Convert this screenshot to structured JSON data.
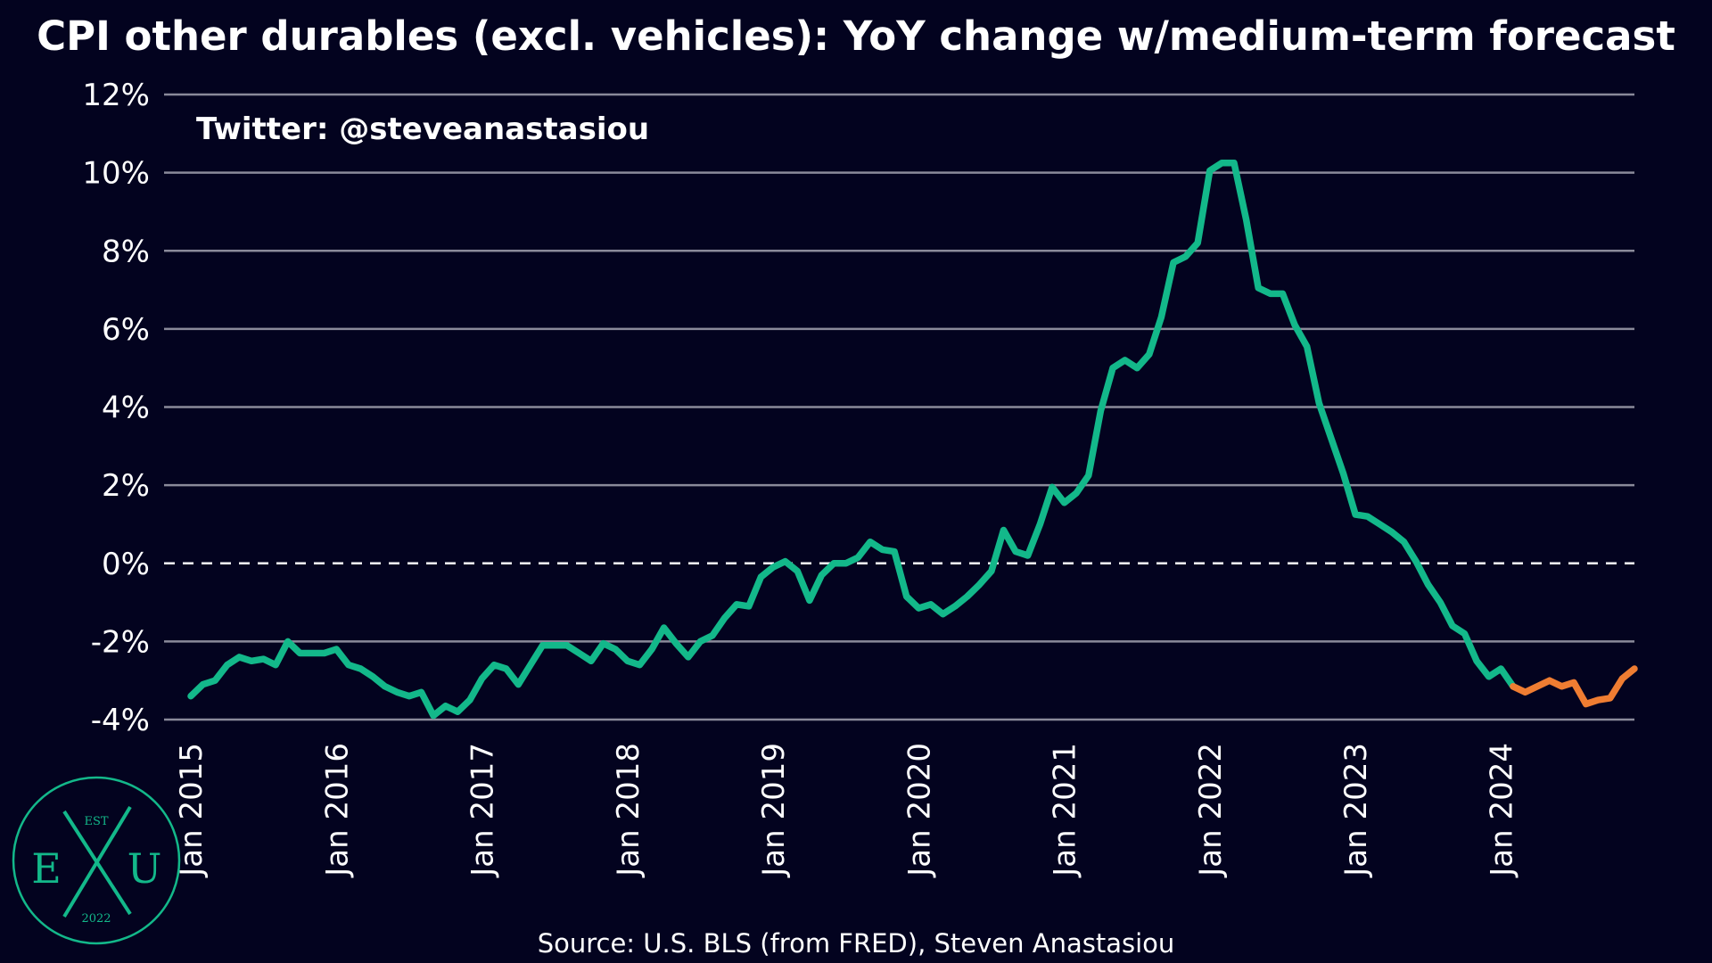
{
  "chart_data": {
    "type": "line",
    "title": "CPI other durables (excl. vehicles): YoY change w/medium-term forecast",
    "annotation": "Twitter: @steveanastasiou",
    "source": "Source: U.S. BLS (from FRED), Steven Anastasiou",
    "logo": {
      "top": "EST",
      "left": "E",
      "right": "U",
      "bottom": "2022"
    },
    "categories": [
      "Jan 2015",
      null,
      null,
      null,
      null,
      null,
      null,
      null,
      null,
      null,
      null,
      null,
      "Jan 2016",
      null,
      null,
      null,
      null,
      null,
      null,
      null,
      null,
      null,
      null,
      null,
      "Jan 2017",
      null,
      null,
      null,
      null,
      null,
      null,
      null,
      null,
      null,
      null,
      null,
      "Jan 2018",
      null,
      null,
      null,
      null,
      null,
      null,
      null,
      null,
      null,
      null,
      null,
      "Jan 2019",
      null,
      null,
      null,
      null,
      null,
      null,
      null,
      null,
      null,
      null,
      null,
      "Jan 2020",
      null,
      null,
      null,
      null,
      null,
      null,
      null,
      null,
      null,
      null,
      null,
      "Jan 2021",
      null,
      null,
      null,
      null,
      null,
      null,
      null,
      null,
      null,
      null,
      null,
      "Jan 2022",
      null,
      null,
      null,
      null,
      null,
      null,
      null,
      null,
      null,
      null,
      null,
      "Jan 2023",
      null,
      null,
      null,
      null,
      null,
      null,
      null,
      null,
      null,
      null,
      null,
      "Jan 2024",
      null,
      null,
      null,
      null,
      null,
      null,
      null,
      null,
      null,
      null,
      null
    ],
    "series": [
      {
        "color": "#13b88a",
        "values": [
          -3.4,
          -3.1,
          -3.0,
          -2.6,
          -2.4,
          -2.5,
          -2.45,
          -2.6,
          -2.0,
          -2.3,
          -2.3,
          -2.3,
          -2.2,
          -2.6,
          -2.7,
          -2.9,
          -3.15,
          -3.3,
          -3.4,
          -3.3,
          -3.9,
          -3.65,
          -3.8,
          -3.5,
          -2.95,
          -2.6,
          -2.7,
          -3.1,
          -2.6,
          -2.1,
          -2.1,
          -2.1,
          -2.3,
          -2.5,
          -2.05,
          -2.2,
          -2.5,
          -2.6,
          -2.2,
          -1.65,
          -2.05,
          -2.4,
          -2.0,
          -1.85,
          -1.4,
          -1.05,
          -1.1,
          -0.35,
          -0.1,
          0.05,
          -0.2,
          -0.95,
          -0.3,
          0.0,
          0.0,
          0.15,
          0.55,
          0.35,
          0.3,
          -0.85,
          -1.15,
          -1.05,
          -1.3,
          -1.1,
          -0.85,
          -0.55,
          -0.2,
          0.85,
          0.3,
          0.2,
          1.0,
          1.95,
          1.55,
          1.8,
          2.25,
          3.9,
          5.0,
          5.2,
          5.0,
          5.35,
          6.3,
          7.7,
          7.85,
          8.2,
          10.05,
          10.25,
          10.25,
          8.8,
          7.05,
          6.9,
          6.9,
          6.1,
          5.55,
          4.1,
          3.2,
          2.3,
          1.25,
          1.2,
          1.0,
          0.8,
          0.55,
          0.05,
          -0.55,
          -1.0,
          -1.6,
          -1.8,
          -2.5,
          -2.9,
          -2.7,
          -3.15,
          null,
          null,
          null,
          null,
          null,
          null,
          null,
          null,
          null,
          null
        ]
      },
      {
        "color": "#ef7d32",
        "values": [
          null,
          null,
          null,
          null,
          null,
          null,
          null,
          null,
          null,
          null,
          null,
          null,
          null,
          null,
          null,
          null,
          null,
          null,
          null,
          null,
          null,
          null,
          null,
          null,
          null,
          null,
          null,
          null,
          null,
          null,
          null,
          null,
          null,
          null,
          null,
          null,
          null,
          null,
          null,
          null,
          null,
          null,
          null,
          null,
          null,
          null,
          null,
          null,
          null,
          null,
          null,
          null,
          null,
          null,
          null,
          null,
          null,
          null,
          null,
          null,
          null,
          null,
          null,
          null,
          null,
          null,
          null,
          null,
          null,
          null,
          null,
          null,
          null,
          null,
          null,
          null,
          null,
          null,
          null,
          null,
          null,
          null,
          null,
          null,
          null,
          null,
          null,
          null,
          null,
          null,
          null,
          null,
          null,
          null,
          null,
          null,
          null,
          null,
          null,
          null,
          null,
          null,
          null,
          null,
          null,
          null,
          null,
          null,
          null,
          -3.15,
          -3.3,
          -3.15,
          -3.0,
          -3.15,
          -3.05,
          -3.6,
          -3.5,
          -3.45,
          -2.95,
          -2.7
        ]
      }
    ],
    "ylim": [
      -4,
      12
    ],
    "yticks": [
      {
        "value": -4,
        "label": "-4%"
      },
      {
        "value": -2,
        "label": "-2%"
      },
      {
        "value": 0,
        "label": "0%"
      },
      {
        "value": 2,
        "label": "2%"
      },
      {
        "value": 4,
        "label": "4%"
      },
      {
        "value": 6,
        "label": "6%"
      },
      {
        "value": 8,
        "label": "8%"
      },
      {
        "value": 10,
        "label": "10%"
      },
      {
        "value": 12,
        "label": "12%"
      }
    ],
    "grid": true
  }
}
